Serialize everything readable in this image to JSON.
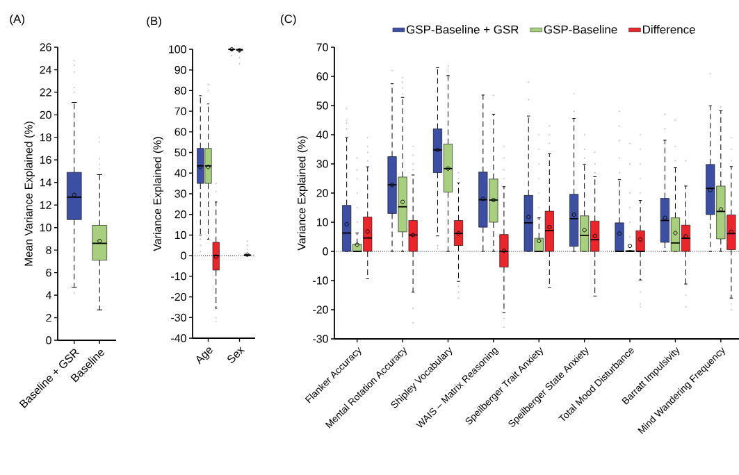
{
  "chart_data": [
    {
      "type": "box",
      "title": "(A)",
      "ylabel": "Mean Variance Explained (%)",
      "categories": [
        "Baseline + GSR",
        "Baseline"
      ],
      "colors": [
        "#3c4fa3",
        "#a8cf7e"
      ],
      "boxes": [
        {
          "low": 4.7,
          "q1": 10.7,
          "median": 12.7,
          "q3": 14.9,
          "high": 21.1,
          "mean": 12.9,
          "outliers": [
            4.2,
            22.0,
            22.4,
            23.8,
            24.4,
            24.8
          ]
        },
        {
          "low": 2.7,
          "q1": 7.1,
          "median": 8.6,
          "q3": 10.2,
          "high": 14.7,
          "mean": 8.8,
          "outliers": [
            15.2,
            15.6,
            16.1,
            17.6,
            18.0
          ]
        }
      ],
      "ylim": [
        0,
        26
      ],
      "yticks": [
        0,
        2,
        4,
        6,
        8,
        10,
        12,
        14,
        16,
        18,
        20,
        22,
        24,
        26
      ]
    },
    {
      "type": "box",
      "title": "(B)",
      "ylabel": "Variance Explained (%)",
      "categories": [
        "Age",
        "Sex"
      ],
      "series": [
        {
          "color": "#3c4fa3",
          "boxes": [
            {
              "low": 10,
              "q1": 35,
              "median": 43.5,
              "q3": 52,
              "high": 77.5,
              "mean": 43,
              "outliers": [
                2,
                5,
                8
              ]
            },
            {
              "low": 99.5,
              "q1": 99.8,
              "median": 100,
              "q3": 100,
              "high": 100,
              "mean": 100,
              "outliers": [
                97
              ]
            }
          ]
        },
        {
          "color": "#a8cf7e",
          "boxes": [
            {
              "low": 8,
              "q1": 35,
              "median": 43.5,
              "q3": 52,
              "high": 73.5,
              "mean": 43,
              "outliers": [
                80,
                83
              ]
            },
            {
              "low": 99,
              "q1": 99.5,
              "median": 99.8,
              "q3": 100,
              "high": 100,
              "mean": 99.5,
              "outliers": [
                93,
                96
              ]
            }
          ]
        },
        {
          "color": "#e8262b",
          "boxes": [
            {
              "low": -25.5,
              "q1": -7,
              "median": 0,
              "q3": 6.5,
              "high": 26,
              "mean": -0.5,
              "outliers": [
                31,
                35,
                -30,
                -32
              ]
            },
            {
              "low": 0,
              "q1": 0,
              "median": 0.2,
              "q3": 0.5,
              "high": 0.5,
              "mean": 0.5,
              "outliers": [
                3,
                5,
                7
              ]
            }
          ]
        }
      ],
      "ylim": [
        -40,
        100
      ],
      "yticks": [
        -40,
        -30,
        -20,
        -10,
        0,
        10,
        20,
        30,
        40,
        50,
        60,
        70,
        80,
        90,
        100
      ],
      "ref_lines": [
        {
          "axis": "y",
          "value": 0,
          "line_style": "dotted"
        }
      ]
    },
    {
      "type": "box",
      "title": "(C)",
      "ylabel": "Variance Explained (%)",
      "legend": "top",
      "categories": [
        "Flanker Accuracy",
        "Mental Rotation Accuracy",
        "Shipley Vocabulary",
        "WAIS – Matrix Reasoning",
        "Speilberger Trait Anxiety",
        "Speilberger State Anxiety",
        "Total Mood Disturbance",
        "Barratt Impulsivity",
        "Mind Wandering Frequency"
      ],
      "series": [
        {
          "name": "GSP-Baseline + GSR",
          "color": "#3c4fa3",
          "boxes": [
            {
              "low": 0,
              "q1": 0,
              "median": 6.3,
              "q3": 15.8,
              "high": 39,
              "mean": 9.3,
              "outliers": [
                42,
                44,
                45,
                49
              ]
            },
            {
              "low": 0,
              "q1": 13,
              "median": 22.8,
              "q3": 32.5,
              "high": 57.5,
              "mean": 22.8,
              "outliers": [
                62
              ]
            },
            {
              "low": 5.3,
              "q1": 27,
              "median": 34.8,
              "q3": 42,
              "high": 63,
              "mean": 34.8,
              "outliers": [
                1,
                2
              ]
            },
            {
              "low": 0,
              "q1": 8.3,
              "median": 17.7,
              "q3": 27.2,
              "high": 53.6,
              "mean": 18
            },
            {
              "low": 0,
              "q1": 0,
              "median": 9.8,
              "q3": 19.2,
              "high": 46.4,
              "mean": 11.8,
              "outliers": [
                52,
                58
              ]
            },
            {
              "low": 0,
              "q1": 1.7,
              "median": 11.2,
              "q3": 19.6,
              "high": 45.6,
              "mean": 12.6,
              "outliers": [
                48,
                54
              ]
            },
            {
              "low": 0,
              "q1": 0,
              "median": 0,
              "q3": 9.8,
              "high": 24.6,
              "mean": 6.1,
              "outliers": [
                27,
                32,
                38,
                43,
                48
              ]
            },
            {
              "low": 0,
              "q1": 3.1,
              "median": 10.6,
              "q3": 18.2,
              "high": 38.1,
              "mean": 11.5,
              "outliers": [
                42,
                47
              ]
            },
            {
              "low": 0,
              "q1": 12.6,
              "median": 21.6,
              "q3": 29.8,
              "high": 49.9,
              "mean": 21,
              "outliers": [
                61
              ]
            }
          ]
        },
        {
          "name": "GSP-Baseline",
          "color": "#a8cf7e",
          "boxes": [
            {
              "low": 0,
              "q1": 0,
              "median": 0,
              "q3": 2.5,
              "high": 6.3,
              "mean": 2.3,
              "outliers": [
                10,
                15,
                20,
                25,
                28,
                32
              ]
            },
            {
              "low": 0,
              "q1": 6.7,
              "median": 15.3,
              "q3": 25.5,
              "high": 52.8,
              "mean": 17,
              "outliers": [
                54,
                56,
                58,
                59.5
              ]
            },
            {
              "low": 0,
              "q1": 20.3,
              "median": 28.4,
              "q3": 36.8,
              "high": 60.3,
              "mean": 28.4,
              "outliers": [
                61.5,
                62.5,
                63.5
              ]
            },
            {
              "low": 0,
              "q1": 10,
              "median": 17.6,
              "q3": 24.8,
              "high": 47,
              "mean": 17.6,
              "outliers": [
                53.5
              ]
            },
            {
              "low": 0,
              "q1": 0,
              "median": 0,
              "q3": 4.5,
              "high": 11.5,
              "mean": 3.6,
              "outliers": [
                15,
                20,
                25,
                30,
                35,
                40
              ]
            },
            {
              "low": 0,
              "q1": 0,
              "median": 5.5,
              "q3": 12.2,
              "high": 29.9,
              "mean": 7.3,
              "outliers": [
                32,
                35,
                40
              ]
            },
            {
              "low": 0,
              "q1": 0,
              "median": 0,
              "q3": 0.3,
              "high": 0.3,
              "mean": 1.9,
              "outliers": [
                5,
                10,
                15,
                20,
                30,
                37
              ]
            },
            {
              "low": 0,
              "q1": 0,
              "median": 2.9,
              "q3": 11.5,
              "high": 28.7,
              "mean": 6.3,
              "outliers": [
                31,
                36,
                45
              ]
            },
            {
              "low": 0,
              "q1": 4.3,
              "median": 13.7,
              "q3": 22.4,
              "high": 48.2,
              "mean": 14.4,
              "outliers": [
                49.5
              ]
            }
          ]
        },
        {
          "name": "Difference",
          "color": "#e8262b",
          "boxes": [
            {
              "low": -9.4,
              "q1": 0,
              "median": 4.6,
              "q3": 11.8,
              "high": 29,
              "mean": 6.8,
              "outliers": [
                31,
                34,
                36,
                39
              ]
            },
            {
              "low": -14,
              "q1": 0,
              "median": 5.6,
              "q3": 10.6,
              "high": 26.2,
              "mean": 5.6,
              "outliers": [
                28,
                30,
                33,
                36,
                -19.5,
                -24.5
              ]
            },
            {
              "low": -10.3,
              "q1": 2,
              "median": 6.2,
              "q3": 10.6,
              "high": 23.5,
              "mean": 6.2,
              "outliers": [
                25,
                27,
                -12,
                -14,
                -16
              ]
            },
            {
              "low": -21,
              "q1": -5.4,
              "median": 0,
              "q3": 5.8,
              "high": 22.2,
              "mean": 0.2,
              "outliers": [
                25,
                28,
                32,
                36,
                -23,
                -26
              ]
            },
            {
              "low": -12.4,
              "q1": 0,
              "median": 7.1,
              "q3": 13.8,
              "high": 33.5,
              "mean": 8.3,
              "outliers": [
                37,
                40,
                43
              ]
            },
            {
              "low": -15.3,
              "q1": 0,
              "median": 4,
              "q3": 10.4,
              "high": 25.6,
              "mean": 5.3,
              "outliers": [
                27,
                30,
                34
              ]
            },
            {
              "low": -9.8,
              "q1": 0,
              "median": 0,
              "q3": 7.1,
              "high": 17.5,
              "mean": 4.1,
              "outliers": [
                20,
                25,
                30,
                35,
                40,
                -14,
                -18,
                -19
              ]
            },
            {
              "low": -11.2,
              "q1": 0,
              "median": 4.5,
              "q3": 9,
              "high": 22.4,
              "mean": 5.2,
              "outliers": [
                31,
                -15,
                -19
              ]
            },
            {
              "low": -16,
              "q1": 0.6,
              "median": 6.1,
              "q3": 12.5,
              "high": 29.1,
              "mean": 6.7,
              "outliers": [
                31,
                35,
                39,
                -18,
                -20
              ]
            }
          ]
        }
      ],
      "ylim": [
        -30,
        70
      ],
      "yticks": [
        -30,
        -20,
        -10,
        0,
        10,
        20,
        30,
        40,
        50,
        60,
        70
      ],
      "ref_lines": [
        {
          "axis": "y",
          "value": 0,
          "line_style": "dotted"
        }
      ]
    }
  ]
}
